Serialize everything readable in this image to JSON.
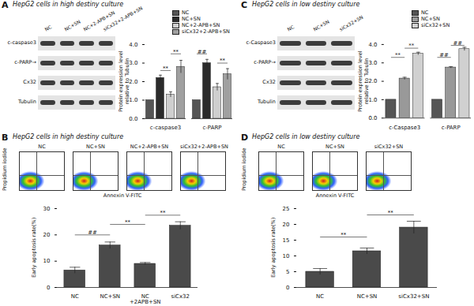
{
  "panels": [
    {
      "letter": "A",
      "title": "HepG2 cells in high destiny culture",
      "blot": {
        "lanes": [
          "NC",
          "NC+SN",
          "NC+2-APB+SN",
          "siCx32+2-APB+SN"
        ],
        "rows": [
          "c-caspase3",
          "c-PARP→",
          "Cx32",
          "Tubulin"
        ]
      }
    },
    {
      "letter": "B",
      "title": "HepG2 cells in high destiny culture",
      "flow": {
        "samples": [
          "NC",
          "NC+SN",
          "NC+2-APB+SN",
          "siCx32+2-APB+SN"
        ],
        "xlabel": "Annexin V-FITC",
        "ylabel": "Propidium iodide"
      }
    },
    {
      "letter": "C",
      "title": "HepG2 cells in low destiny culture",
      "blot": {
        "lanes": [
          "NC",
          "NC+SN",
          "siCx32+SN"
        ],
        "rows": [
          "c-Caspase3",
          "c-PARP→",
          "Cx32",
          "Tubulin"
        ]
      }
    },
    {
      "letter": "D",
      "title": "HepG2 cells in low destiny culture",
      "flow": {
        "samples": [
          "NC",
          "NC+SN",
          "siCx32+SN"
        ],
        "xlabel": "Annexin V-FITC",
        "ylabel": "Propidium iodide"
      }
    }
  ],
  "chart_data": [
    {
      "type": "bar",
      "ylabel": "Protein expression level relative to Tubulin",
      "categories": [
        "c-caspase3",
        "c-PARP"
      ],
      "series": [
        {
          "name": "NC",
          "color": "#555555",
          "values": [
            1,
            1
          ],
          "errors": [
            0,
            0
          ]
        },
        {
          "name": "NC+SN",
          "color": "#2b2b2b",
          "values": [
            2.2,
            3.0
          ],
          "errors": [
            0.15,
            0.2
          ]
        },
        {
          "name": "NC+2-APB+SN",
          "color": "#cfcfcf",
          "values": [
            1.3,
            1.7
          ],
          "errors": [
            0.15,
            0.2
          ]
        },
        {
          "name": "siCx32+2-APB+SN",
          "color": "#a0a0a0",
          "values": [
            2.8,
            2.4
          ],
          "errors": [
            0.35,
            0.3
          ]
        }
      ],
      "annotations": [
        {
          "text": "**",
          "category": "c-caspase3",
          "from": "NC+SN",
          "to": "NC+2-APB+SN",
          "y": 2.6
        },
        {
          "text": "**",
          "category": "c-caspase3",
          "from": "NC+2-APB+SN",
          "to": "siCx32+2-APB+SN",
          "y": 3.5
        },
        {
          "text": "##",
          "category": "c-PARP",
          "from": "NC",
          "to": "NC+SN",
          "y": 3.5
        },
        {
          "text": "**",
          "category": "c-PARP",
          "from": "NC+2-APB+SN",
          "to": "siCx32+2-APB+SN",
          "y": 3.0
        }
      ],
      "ylim": [
        0,
        4
      ],
      "yticks": [
        0,
        1,
        2,
        3,
        4
      ],
      "legend": "top-right"
    },
    {
      "type": "bar",
      "ylabel": "Early apoptosis rate(%)",
      "categories": [
        "NC",
        "NC+SN",
        "NC\n+2APB+SN",
        "siCx32"
      ],
      "values": [
        6.5,
        16,
        9,
        23.5
      ],
      "errors": [
        1.2,
        1.3,
        0.5,
        1.5
      ],
      "color": "#4a4a4a",
      "annotations": [
        {
          "text": "##",
          "from": "NC",
          "to": "NC+SN",
          "y": 20
        },
        {
          "text": "**",
          "from": "NC+SN",
          "to": "NC\n+2APB+SN",
          "y": 24
        },
        {
          "text": "**",
          "from": "NC\n+2APB+SN",
          "to": "siCx32",
          "y": 27.5
        }
      ],
      "ylim": [
        0,
        30
      ],
      "yticks": [
        0,
        10,
        20,
        30
      ]
    },
    {
      "type": "bar",
      "ylabel": "Protein expression level relative to Tubulin",
      "categories": [
        "c-Caspase3",
        "c-PARP"
      ],
      "series": [
        {
          "name": "NC",
          "color": "#555555",
          "values": [
            1,
            1
          ],
          "errors": [
            0,
            0
          ]
        },
        {
          "name": "NC+SN",
          "color": "#999999",
          "values": [
            2.15,
            2.75
          ],
          "errors": [
            0.07,
            0.05
          ]
        },
        {
          "name": "siCx32+SN",
          "color": "#d0d0d0",
          "values": [
            3.5,
            3.75
          ],
          "errors": [
            0.08,
            0.1
          ]
        }
      ],
      "annotations": [
        {
          "text": "**",
          "category": "c-Caspase3",
          "from": "NC",
          "to": "NC+SN",
          "y": 3.3
        },
        {
          "text": "**",
          "category": "c-Caspase3",
          "from": "NC+SN",
          "to": "siCx32+SN",
          "y": 3.8
        },
        {
          "text": "##",
          "category": "c-PARP",
          "from": "NC",
          "to": "NC+SN",
          "y": 3.3
        },
        {
          "text": "##",
          "category": "c-PARP",
          "from": "NC+SN",
          "to": "siCx32+SN",
          "y": 3.95
        }
      ],
      "ylim": [
        0,
        4
      ],
      "yticks": [
        0,
        1,
        2,
        3,
        4
      ],
      "legend": "top-right"
    },
    {
      "type": "bar",
      "ylabel": "Early apoptosis rate(%)",
      "categories": [
        "NC",
        "NC+SN",
        "siCx32+SN"
      ],
      "values": [
        5,
        11.5,
        19
      ],
      "errors": [
        1,
        1,
        2
      ],
      "color": "#4a4a4a",
      "annotations": [
        {
          "text": "**",
          "from": "NC",
          "to": "NC+SN",
          "y": 16
        },
        {
          "text": "**",
          "from": "NC+SN",
          "to": "siCx32+SN",
          "y": 23
        }
      ],
      "ylim": [
        0,
        25
      ],
      "yticks": [
        0,
        5,
        10,
        15,
        20,
        25
      ]
    }
  ]
}
